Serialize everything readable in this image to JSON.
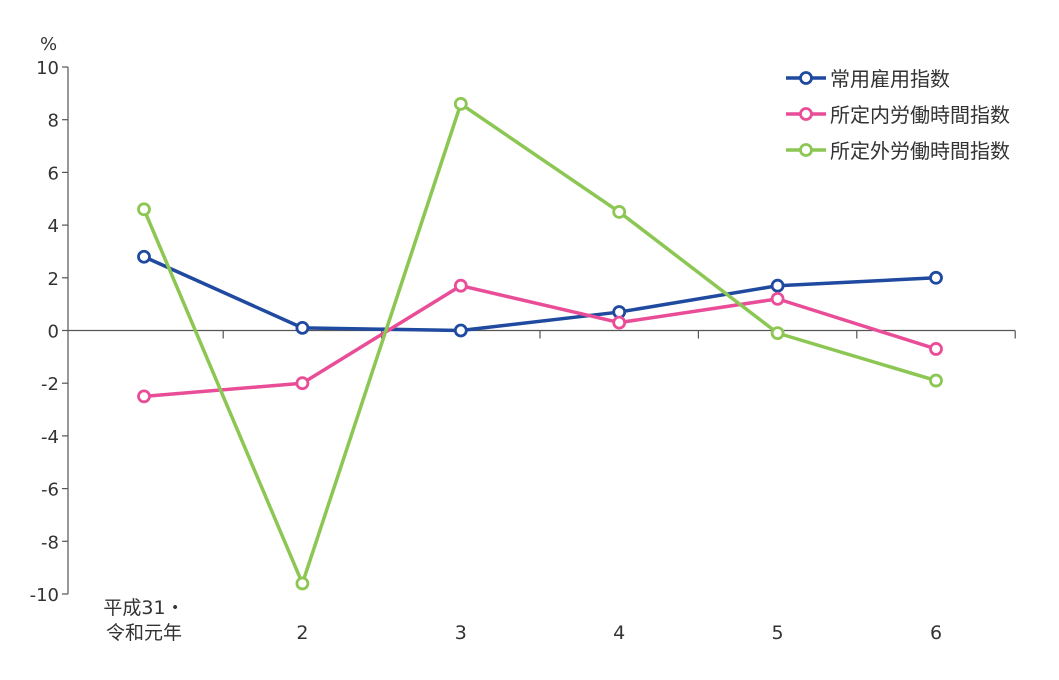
{
  "chart_data": {
    "type": "line",
    "ylabel": "%",
    "ylim": [
      -10,
      10
    ],
    "yticks": [
      10,
      8,
      6,
      4,
      2,
      0,
      -2,
      -4,
      -6,
      -8,
      -10
    ],
    "categories": [
      [
        "平成31・",
        "令和元年"
      ],
      [
        "2"
      ],
      [
        "3"
      ],
      [
        "4"
      ],
      [
        "5"
      ],
      [
        "6"
      ]
    ],
    "grid": false,
    "legend": "top-right",
    "series": [
      {
        "name": "常用雇用指数",
        "color": "#1f4aa0",
        "values": [
          2.8,
          0.1,
          0.0,
          0.7,
          1.7,
          2.0
        ]
      },
      {
        "name": "所定内労働時間指数",
        "color": "#e94d97",
        "values": [
          -2.5,
          -2.0,
          1.7,
          0.3,
          1.2,
          -0.7
        ]
      },
      {
        "name": "所定外労働時間指数",
        "color": "#8cc653",
        "values": [
          4.6,
          -9.6,
          8.6,
          4.5,
          -0.1,
          -1.9
        ]
      }
    ]
  }
}
